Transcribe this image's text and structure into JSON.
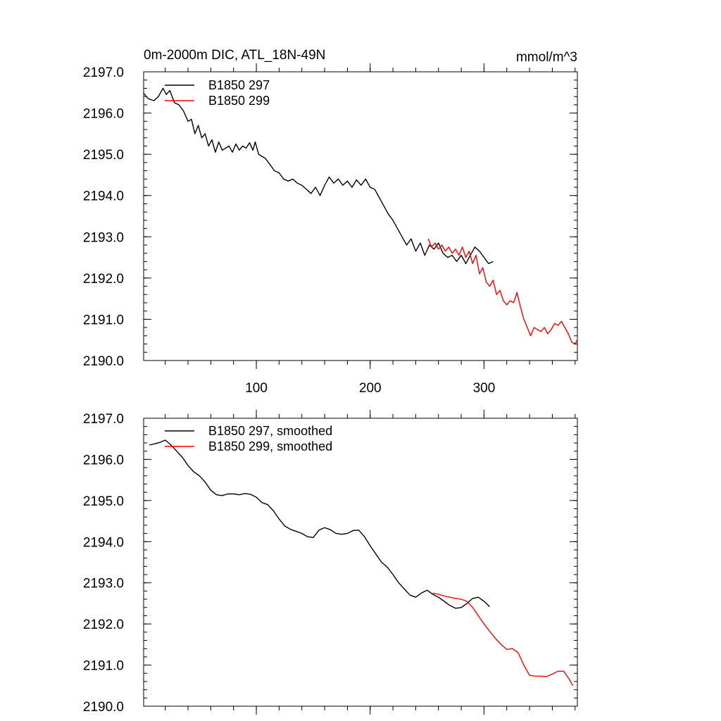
{
  "chart_data": [
    {
      "type": "line",
      "title_left": "0m-2000m DIC, ATL_18N-49N",
      "title_right": "mmol/m^3",
      "xlabel": "",
      "ylabel": "",
      "xlim": [
        1,
        382
      ],
      "ylim": [
        2190.0,
        2197.0
      ],
      "x_ticks": [
        100,
        200,
        300
      ],
      "x_tick_labels": [
        "100",
        "200",
        "300"
      ],
      "y_ticks": [
        2190,
        2191,
        2192,
        2193,
        2194,
        2195,
        2196,
        2197
      ],
      "y_tick_labels": [
        "2190.0",
        "2191.0",
        "2192.0",
        "2193.0",
        "2194.0",
        "2195.0",
        "2196.0",
        "2197.0"
      ],
      "grid": false,
      "legend_position": "top-left",
      "series": [
        {
          "name": "B1850 297",
          "color": "#000000",
          "x": [
            1,
            5,
            10,
            14,
            18,
            21,
            24,
            26,
            28,
            32,
            36,
            40,
            43,
            46,
            49,
            52,
            55,
            58,
            61,
            64,
            67,
            70,
            73,
            76,
            79,
            82,
            85,
            88,
            91,
            94,
            97,
            99,
            102,
            105,
            108,
            112,
            116,
            120,
            124,
            128,
            132,
            136,
            140,
            144,
            148,
            152,
            156,
            160,
            164,
            168,
            172,
            176,
            180,
            184,
            188,
            192,
            196,
            200,
            204,
            208,
            212,
            216,
            220,
            224,
            228,
            232,
            236,
            240,
            244,
            248,
            252,
            256,
            260,
            264,
            268,
            272,
            276,
            280,
            284,
            288,
            292,
            296,
            300,
            304,
            308
          ],
          "values": [
            2196.48,
            2196.35,
            2196.3,
            2196.4,
            2196.6,
            2196.45,
            2196.55,
            2196.4,
            2196.25,
            2196.2,
            2196.05,
            2195.8,
            2195.85,
            2195.5,
            2195.7,
            2195.4,
            2195.5,
            2195.2,
            2195.35,
            2195.05,
            2195.3,
            2195.1,
            2195.15,
            2195.2,
            2195.05,
            2195.25,
            2195.1,
            2195.2,
            2195.15,
            2195.28,
            2195.1,
            2195.3,
            2195.0,
            2194.95,
            2194.9,
            2194.75,
            2194.6,
            2194.55,
            2194.4,
            2194.35,
            2194.4,
            2194.3,
            2194.25,
            2194.15,
            2194.05,
            2194.2,
            2194.0,
            2194.25,
            2194.45,
            2194.3,
            2194.4,
            2194.25,
            2194.35,
            2194.2,
            2194.38,
            2194.25,
            2194.4,
            2194.2,
            2194.15,
            2193.95,
            2193.75,
            2193.55,
            2193.4,
            2193.2,
            2193.0,
            2192.8,
            2192.95,
            2192.65,
            2192.85,
            2192.55,
            2192.8,
            2192.7,
            2192.85,
            2192.6,
            2192.5,
            2192.55,
            2192.4,
            2192.55,
            2192.35,
            2192.55,
            2192.75,
            2192.65,
            2192.5,
            2192.35,
            2192.4
          ]
        },
        {
          "name": "B1850 299",
          "color": "#ff0000",
          "x": [
            251,
            254,
            257,
            260,
            263,
            266,
            269,
            272,
            275,
            278,
            281,
            284,
            287,
            290,
            293,
            296,
            299,
            302,
            305,
            308,
            311,
            314,
            317,
            320,
            323,
            326,
            329,
            332,
            335,
            338,
            341,
            344,
            347,
            350,
            353,
            356,
            359,
            362,
            365,
            368,
            371,
            374,
            377,
            380,
            382
          ],
          "values": [
            2192.95,
            2192.75,
            2192.85,
            2192.7,
            2192.8,
            2192.65,
            2192.75,
            2192.6,
            2192.7,
            2192.55,
            2192.75,
            2192.5,
            2192.65,
            2192.35,
            2192.55,
            2192.1,
            2192.25,
            2191.9,
            2191.8,
            2191.95,
            2191.6,
            2191.7,
            2191.45,
            2191.35,
            2191.45,
            2191.4,
            2191.65,
            2191.3,
            2191.0,
            2190.8,
            2190.6,
            2190.8,
            2190.75,
            2190.7,
            2190.8,
            2190.65,
            2190.75,
            2190.9,
            2190.85,
            2190.95,
            2190.8,
            2190.65,
            2190.45,
            2190.4,
            2190.5
          ]
        }
      ]
    },
    {
      "type": "line",
      "xlabel": "",
      "ylabel": "",
      "xlim": [
        1,
        382
      ],
      "ylim": [
        2190.0,
        2197.0
      ],
      "y_ticks": [
        2190,
        2191,
        2192,
        2193,
        2194,
        2195,
        2196,
        2197
      ],
      "y_tick_labels": [
        "2190.0",
        "2191.0",
        "2192.0",
        "2193.0",
        "2194.0",
        "2195.0",
        "2196.0",
        "2197.0"
      ],
      "grid": false,
      "legend_position": "top-left",
      "series": [
        {
          "name": "B1850 297, smoothed",
          "color": "#000000",
          "x": [
            6,
            11,
            16,
            20,
            25,
            30,
            35,
            40,
            45,
            50,
            55,
            60,
            65,
            70,
            75,
            80,
            85,
            90,
            95,
            100,
            105,
            110,
            115,
            120,
            125,
            130,
            135,
            140,
            145,
            150,
            155,
            160,
            165,
            170,
            175,
            180,
            185,
            190,
            195,
            200,
            205,
            210,
            215,
            220,
            225,
            230,
            235,
            240,
            245,
            250,
            255,
            260,
            265,
            270,
            275,
            280,
            285,
            290,
            295,
            300,
            305
          ],
          "values": [
            2196.35,
            2196.38,
            2196.42,
            2196.47,
            2196.35,
            2196.2,
            2196.05,
            2195.85,
            2195.7,
            2195.6,
            2195.45,
            2195.25,
            2195.14,
            2195.12,
            2195.16,
            2195.16,
            2195.14,
            2195.17,
            2195.15,
            2195.08,
            2194.95,
            2194.9,
            2194.75,
            2194.55,
            2194.38,
            2194.3,
            2194.25,
            2194.2,
            2194.12,
            2194.1,
            2194.28,
            2194.34,
            2194.29,
            2194.2,
            2194.18,
            2194.2,
            2194.27,
            2194.28,
            2194.12,
            2193.9,
            2193.7,
            2193.5,
            2193.38,
            2193.2,
            2193.0,
            2192.85,
            2192.7,
            2192.65,
            2192.75,
            2192.82,
            2192.72,
            2192.65,
            2192.55,
            2192.45,
            2192.38,
            2192.4,
            2192.5,
            2192.62,
            2192.65,
            2192.55,
            2192.42
          ]
        },
        {
          "name": "B1850 299, smoothed",
          "color": "#ff0000",
          "x": [
            255,
            260,
            265,
            270,
            275,
            280,
            285,
            290,
            295,
            300,
            305,
            310,
            315,
            320,
            325,
            330,
            335,
            340,
            345,
            350,
            355,
            360,
            365,
            370,
            375,
            378
          ],
          "values": [
            2192.75,
            2192.72,
            2192.68,
            2192.65,
            2192.62,
            2192.6,
            2192.55,
            2192.4,
            2192.2,
            2192.0,
            2191.82,
            2191.65,
            2191.5,
            2191.38,
            2191.4,
            2191.3,
            2191.0,
            2190.75,
            2190.73,
            2190.73,
            2190.72,
            2190.78,
            2190.85,
            2190.85,
            2190.65,
            2190.5
          ]
        }
      ]
    }
  ]
}
